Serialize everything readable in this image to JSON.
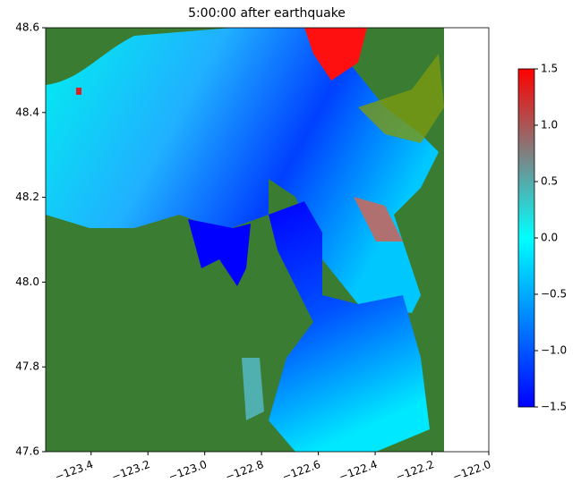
{
  "chart_data": {
    "type": "map",
    "title": "5:00:00 after earthquake",
    "xlim": [
      -123.56,
      -122.0
    ],
    "ylim": [
      47.6,
      48.6
    ],
    "xticks": [
      {
        "value": -123.4,
        "label": "−123.4"
      },
      {
        "value": -123.2,
        "label": "−123.2"
      },
      {
        "value": -123.0,
        "label": "−123.0"
      },
      {
        "value": -122.8,
        "label": "−122.8"
      },
      {
        "value": -122.6,
        "label": "−122.6"
      },
      {
        "value": -122.4,
        "label": "−122.4"
      },
      {
        "value": -122.2,
        "label": "−122.2"
      },
      {
        "value": -122.0,
        "label": "−122.0"
      }
    ],
    "yticks": [
      47.6,
      47.8,
      {
        "value": 48.0,
        "label": "48.0"
      },
      48.2,
      48.4,
      48.6
    ],
    "colorbar": {
      "clim": [
        -1.5,
        1.5
      ],
      "ticks": [
        {
          "value": -1.5,
          "label": "−1.5"
        },
        {
          "value": -1.0,
          "label": "−1.0"
        },
        {
          "value": -0.5,
          "label": "−0.5"
        },
        {
          "value": 0.0,
          "label": "0.0"
        },
        0.5,
        {
          "value": 1.0,
          "label": "1.0"
        },
        1.5
      ],
      "colors": [
        "#0000ff",
        "#0080ff",
        "#00ffff",
        "#808080",
        "#ff0000"
      ]
    }
  }
}
